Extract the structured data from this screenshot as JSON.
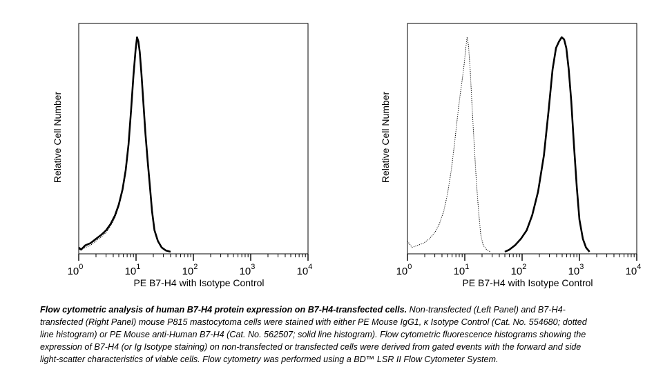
{
  "chart_data": [
    {
      "type": "area",
      "panel": "left",
      "xscale": "log",
      "xlim": [
        1,
        10000
      ],
      "ylabel": "Relative Cell Number",
      "xlabel": "PE  B7-H4 with Isotype Control",
      "xtick_labels": [
        {
          "base": "10",
          "exp": "0"
        },
        {
          "base": "10",
          "exp": "1"
        },
        {
          "base": "10",
          "exp": "2"
        },
        {
          "base": "10",
          "exp": "3"
        },
        {
          "base": "10",
          "exp": "4"
        }
      ],
      "series": [
        {
          "style": "solid",
          "x": [
            1,
            1.1,
            1.3,
            1.6,
            2,
            2.5,
            3,
            3.6,
            4.3,
            5,
            5.8,
            6.6,
            7.4,
            8.2,
            9,
            9.8,
            10.4,
            11,
            11.6,
            12.4,
            13.4,
            14.6,
            16,
            17.5,
            19,
            21,
            24,
            28,
            33,
            40
          ],
          "y": [
            0.02,
            0.01,
            0.03,
            0.04,
            0.06,
            0.08,
            0.1,
            0.13,
            0.17,
            0.22,
            0.29,
            0.38,
            0.5,
            0.66,
            0.82,
            0.94,
            1.0,
            0.98,
            0.93,
            0.83,
            0.7,
            0.55,
            0.42,
            0.3,
            0.19,
            0.1,
            0.05,
            0.02,
            0.006,
            0
          ]
        },
        {
          "style": "dotted",
          "x": [
            1,
            1.1,
            1.3,
            1.6,
            2,
            2.5,
            3,
            3.6,
            4.3,
            5,
            5.8,
            6.6,
            7.4,
            8.2,
            9,
            9.8,
            10.4,
            11,
            11.6,
            12.4,
            13.4,
            14.6,
            16,
            17.5,
            19,
            21,
            24,
            28,
            33,
            40
          ],
          "y": [
            0.01,
            0.01,
            0.02,
            0.03,
            0.05,
            0.07,
            0.09,
            0.12,
            0.16,
            0.21,
            0.28,
            0.37,
            0.49,
            0.65,
            0.81,
            0.93,
            0.99,
            0.97,
            0.92,
            0.82,
            0.69,
            0.54,
            0.41,
            0.29,
            0.18,
            0.1,
            0.05,
            0.02,
            0.006,
            0
          ]
        }
      ]
    },
    {
      "type": "area",
      "panel": "right",
      "xscale": "log",
      "xlim": [
        1,
        10000
      ],
      "ylabel": "Relative Cell Number",
      "xlabel": "PE  B7-H4 with Isotype Control",
      "xtick_labels": [
        {
          "base": "10",
          "exp": "0"
        },
        {
          "base": "10",
          "exp": "1"
        },
        {
          "base": "10",
          "exp": "2"
        },
        {
          "base": "10",
          "exp": "3"
        },
        {
          "base": "10",
          "exp": "4"
        }
      ],
      "series": [
        {
          "style": "dotted",
          "x": [
            1,
            1.2,
            1.5,
            1.9,
            2.4,
            3,
            3.6,
            4.3,
            5,
            5.8,
            6.6,
            7.4,
            8.2,
            9,
            9.8,
            10.4,
            11,
            11.6,
            12.4,
            13.4,
            14.6,
            16,
            17.5,
            19,
            21,
            24,
            28
          ],
          "y": [
            0.05,
            0.02,
            0.03,
            0.04,
            0.06,
            0.09,
            0.13,
            0.19,
            0.27,
            0.38,
            0.5,
            0.62,
            0.72,
            0.8,
            0.88,
            0.95,
            1.0,
            0.96,
            0.85,
            0.68,
            0.5,
            0.32,
            0.18,
            0.08,
            0.03,
            0.01,
            0
          ]
        },
        {
          "style": "solid",
          "x": [
            50,
            60,
            75,
            95,
            120,
            150,
            190,
            240,
            290,
            340,
            390,
            440,
            490,
            540,
            590,
            650,
            720,
            800,
            900,
            1000,
            1150,
            1300,
            1500
          ],
          "y": [
            0,
            0.01,
            0.03,
            0.06,
            0.1,
            0.17,
            0.28,
            0.45,
            0.66,
            0.85,
            0.95,
            0.98,
            1.0,
            0.99,
            0.95,
            0.85,
            0.7,
            0.5,
            0.3,
            0.15,
            0.06,
            0.02,
            0
          ]
        }
      ]
    }
  ],
  "caption": {
    "lead": "Flow cytometric analysis of human B7-H4 protein expression on B7-H4-transfected cells.",
    "body": " Non-transfected (Left Panel) and B7-H4-transfected (Right Panel) mouse P815 mastocytoma cells were stained with either PE Mouse IgG1, κ Isotype Control (Cat. No. 554680; dotted line histogram) or PE Mouse anti-Human B7-H4 (Cat. No. 562507; solid line histogram). Flow cytometric fluorescence histograms showing the expression of B7-H4 (or Ig Isotype staining) on non-transfected or transfected cells were derived from gated events with the forward and side light-scatter characteristics of viable cells. Flow cytometry was performed using a BD™ LSR II Flow Cytometer System."
  }
}
